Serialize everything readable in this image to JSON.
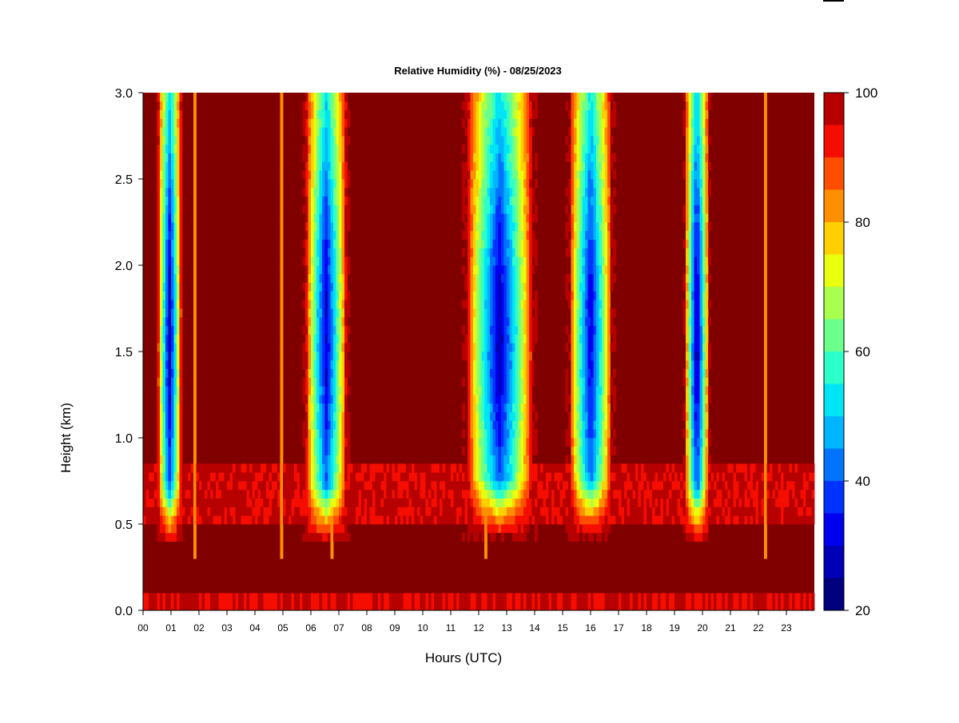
{
  "chart_data": {
    "type": "heatmap",
    "title": "Relative Humidity (%) - 08/25/2023",
    "xlabel": "Hours (UTC)",
    "ylabel": "Height (km)",
    "xlim": [
      0,
      24
    ],
    "ylim": [
      0,
      3.0
    ],
    "x_ticks": [
      "00",
      "01",
      "02",
      "03",
      "04",
      "05",
      "06",
      "07",
      "08",
      "09",
      "10",
      "11",
      "12",
      "13",
      "14",
      "15",
      "16",
      "17",
      "18",
      "19",
      "20",
      "21",
      "22",
      "23"
    ],
    "y_ticks": [
      "0.0",
      "0.5",
      "1.0",
      "1.5",
      "2.0",
      "2.5",
      "3.0"
    ],
    "z_unit": "%",
    "colorbar": {
      "min": 20,
      "max": 100,
      "ticks": [
        "20",
        "40",
        "60",
        "80",
        "100"
      ],
      "levels": [
        {
          "from": 20,
          "to": 25,
          "color": "#00007f"
        },
        {
          "from": 25,
          "to": 30,
          "color": "#0000b6"
        },
        {
          "from": 30,
          "to": 35,
          "color": "#0000f0"
        },
        {
          "from": 35,
          "to": 40,
          "color": "#0033ff"
        },
        {
          "from": 40,
          "to": 45,
          "color": "#0074ff"
        },
        {
          "from": 45,
          "to": 50,
          "color": "#00b5ff"
        },
        {
          "from": 50,
          "to": 55,
          "color": "#00e5f5"
        },
        {
          "from": 55,
          "to": 60,
          "color": "#2cffca"
        },
        {
          "from": 60,
          "to": 65,
          "color": "#6bff8c"
        },
        {
          "from": 65,
          "to": 70,
          "color": "#a9ff4e"
        },
        {
          "from": 70,
          "to": 75,
          "color": "#e8ff10"
        },
        {
          "from": 75,
          "to": 80,
          "color": "#ffcf00"
        },
        {
          "from": 80,
          "to": 85,
          "color": "#ff8f00"
        },
        {
          "from": 85,
          "to": 90,
          "color": "#ff4e00"
        },
        {
          "from": 90,
          "to": 95,
          "color": "#f50d00"
        },
        {
          "from": 95,
          "to": 100,
          "color": "#b70000"
        },
        {
          "from": 100,
          "to": 105,
          "color": "#800000"
        }
      ]
    },
    "dry_bands": [
      {
        "center_hour": 0.95,
        "half_width_hours": 0.42,
        "base_km": 0.38,
        "min_rh": 27
      },
      {
        "center_hour": 6.55,
        "half_width_hours": 0.72,
        "base_km": 0.38,
        "min_rh": 29
      },
      {
        "center_hour": 12.75,
        "half_width_hours": 1.15,
        "base_km": 0.42,
        "min_rh": 27
      },
      {
        "center_hour": 16.0,
        "half_width_hours": 0.75,
        "base_km": 0.42,
        "min_rh": 30
      },
      {
        "center_hour": 19.8,
        "half_width_hours": 0.42,
        "base_km": 0.38,
        "min_rh": 25
      }
    ],
    "background_rh": 100,
    "boundary_layer_top_km": 0.5,
    "legend": "colorbar right"
  }
}
